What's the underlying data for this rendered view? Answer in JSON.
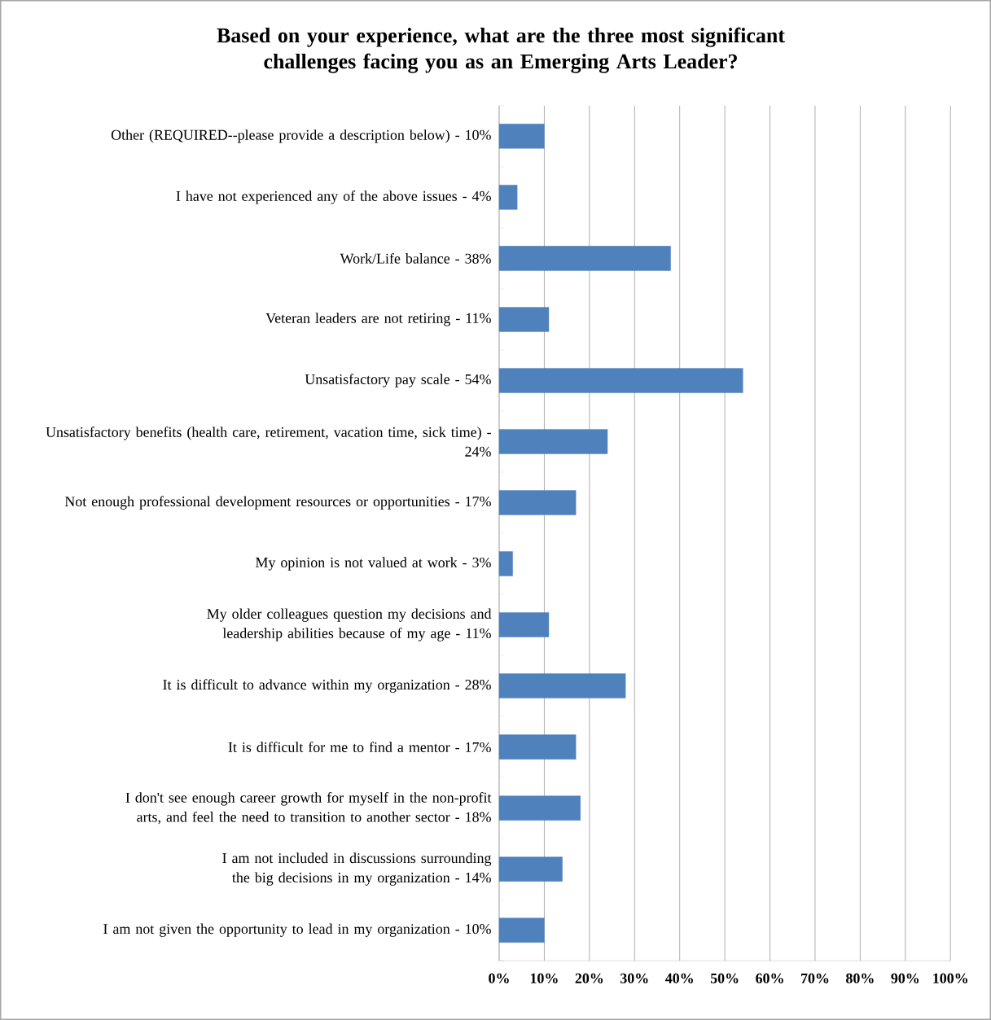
{
  "chart_data": {
    "type": "bar",
    "orientation": "horizontal",
    "title": "Based on your experience, what are the three most significant challenges facing you as an Emerging Arts Leader?",
    "categories": [
      "Other (REQUIRED--please provide a description below) - 10%",
      "I have not experienced any of the above issues - 4%",
      "Work/Life balance - 38%",
      "Veteran leaders are not retiring - 11%",
      "Unsatisfactory pay scale - 54%",
      "Unsatisfactory benefits (health care, retirement, vacation time, sick time) - 24%",
      "Not enough professional development resources or opportunities - 17%",
      "My opinion is not valued at work - 3%",
      "My older colleagues question my decisions and leadership abilities because of my age - 11%",
      "It is difficult to advance within my organization - 28%",
      "It is difficult for me to find a mentor - 17%",
      "I don't see enough career growth for myself in the non-profit arts, and feel the need to transition to another sector - 18%",
      "I am not included in discussions surrounding the big decisions in my organization - 14%",
      "I am not given the opportunity to lead in my organization - 10%"
    ],
    "values": [
      10,
      4,
      38,
      11,
      54,
      24,
      17,
      3,
      11,
      28,
      17,
      18,
      14,
      10
    ],
    "color": "#4f81bd",
    "xlim": [
      0,
      100
    ],
    "xticks": [
      {
        "value": 0,
        "label": "0%"
      },
      {
        "value": 10,
        "label": "10%"
      },
      {
        "value": 20,
        "label": "20%"
      },
      {
        "value": 30,
        "label": "30%"
      },
      {
        "value": 40,
        "label": "40%"
      },
      {
        "value": 50,
        "label": "50%"
      },
      {
        "value": 60,
        "label": "60%"
      },
      {
        "value": 70,
        "label": "70%"
      },
      {
        "value": 80,
        "label": "80%"
      },
      {
        "value": 90,
        "label": "90%"
      },
      {
        "value": 100,
        "label": "100%"
      }
    ],
    "grid": "x"
  }
}
